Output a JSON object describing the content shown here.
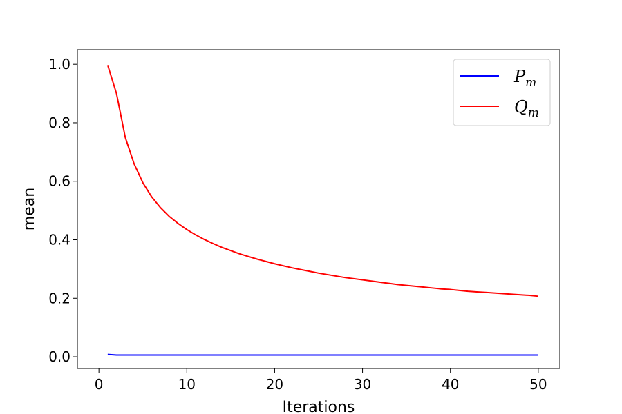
{
  "chart_data": {
    "type": "line",
    "title": "",
    "xlabel": "Iterations",
    "ylabel": "mean",
    "xlim": [
      -2.45,
      52.45
    ],
    "ylim": [
      -0.04,
      1.05
    ],
    "xticks": [
      0,
      10,
      20,
      30,
      40,
      50
    ],
    "xtick_labels": [
      "0",
      "10",
      "20",
      "30",
      "40",
      "50"
    ],
    "yticks": [
      0.0,
      0.2,
      0.4,
      0.6,
      0.8,
      1.0
    ],
    "ytick_labels": [
      "0.0",
      "0.2",
      "0.4",
      "0.6",
      "0.8",
      "1.0"
    ],
    "grid": false,
    "legend_position": "top-right",
    "x": [
      1,
      2,
      3,
      4,
      5,
      6,
      7,
      8,
      9,
      10,
      11,
      12,
      13,
      14,
      15,
      16,
      17,
      18,
      19,
      20,
      21,
      22,
      23,
      24,
      25,
      26,
      27,
      28,
      29,
      30,
      31,
      32,
      33,
      34,
      35,
      36,
      37,
      38,
      39,
      40,
      41,
      42,
      43,
      44,
      45,
      46,
      47,
      48,
      49,
      50
    ],
    "series": [
      {
        "name": "P_m",
        "label_main": "P",
        "label_sub": "m",
        "color": "#0000ff",
        "values": [
          0.008,
          0.006,
          0.006,
          0.006,
          0.006,
          0.006,
          0.006,
          0.006,
          0.006,
          0.006,
          0.006,
          0.006,
          0.006,
          0.006,
          0.006,
          0.006,
          0.006,
          0.006,
          0.006,
          0.006,
          0.006,
          0.006,
          0.006,
          0.006,
          0.006,
          0.006,
          0.006,
          0.006,
          0.006,
          0.006,
          0.006,
          0.006,
          0.006,
          0.006,
          0.006,
          0.006,
          0.006,
          0.006,
          0.006,
          0.006,
          0.006,
          0.006,
          0.006,
          0.006,
          0.006,
          0.006,
          0.006,
          0.006,
          0.006,
          0.006
        ]
      },
      {
        "name": "Q_m",
        "label_main": "Q",
        "label_sub": "m",
        "color": "#ff0000",
        "values": [
          0.997,
          0.9,
          0.75,
          0.66,
          0.595,
          0.547,
          0.51,
          0.48,
          0.456,
          0.435,
          0.417,
          0.401,
          0.387,
          0.374,
          0.363,
          0.352,
          0.343,
          0.334,
          0.326,
          0.318,
          0.311,
          0.304,
          0.298,
          0.292,
          0.286,
          0.281,
          0.276,
          0.271,
          0.267,
          0.263,
          0.259,
          0.255,
          0.251,
          0.247,
          0.244,
          0.241,
          0.238,
          0.235,
          0.232,
          0.23,
          0.227,
          0.224,
          0.222,
          0.22,
          0.218,
          0.216,
          0.214,
          0.212,
          0.21,
          0.207
        ]
      }
    ]
  }
}
